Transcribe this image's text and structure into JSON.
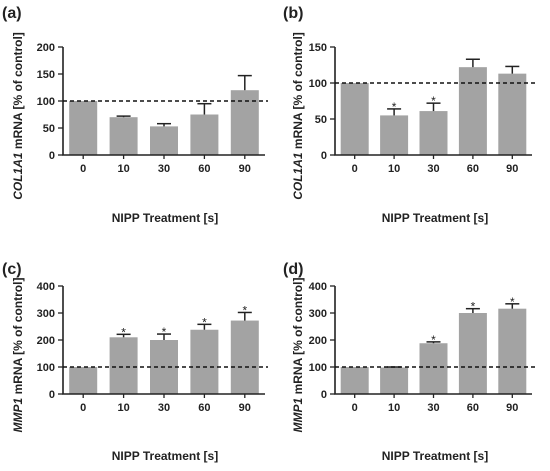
{
  "chart_data": [
    {
      "type": "bar",
      "panel_label": "(a)",
      "categories": [
        "0",
        "10",
        "30",
        "60",
        "90"
      ],
      "values": [
        100,
        70,
        53,
        75,
        120
      ],
      "errors": [
        0,
        2,
        5,
        20,
        27
      ],
      "significant": [
        false,
        false,
        false,
        false,
        false
      ],
      "ylim": [
        0,
        200
      ],
      "yticks": [
        0,
        50,
        100,
        150,
        200
      ],
      "reference_line": 100,
      "ylabel_gene": "COL1A1",
      "ylabel_rest": " mRNA [% of control]",
      "xlabel": "NIPP Treatment [s]",
      "bar_color": "#a3a3a3"
    },
    {
      "type": "bar",
      "panel_label": "(b)",
      "categories": [
        "0",
        "10",
        "30",
        "60",
        "90"
      ],
      "values": [
        100,
        55,
        61,
        122,
        113
      ],
      "errors": [
        0,
        9,
        11,
        11,
        10
      ],
      "significant": [
        false,
        true,
        true,
        false,
        false
      ],
      "ylim": [
        0,
        150
      ],
      "yticks": [
        0,
        50,
        100,
        150
      ],
      "reference_line": 100,
      "ylabel_gene": "COL1A1",
      "ylabel_rest": " mRNA [% of control]",
      "xlabel": "NIPP Treatment [s]",
      "bar_color": "#a3a3a3"
    },
    {
      "type": "bar",
      "panel_label": "(c)",
      "categories": [
        "0",
        "10",
        "30",
        "60",
        "90"
      ],
      "values": [
        100,
        210,
        200,
        238,
        272
      ],
      "errors": [
        0,
        11,
        22,
        20,
        30
      ],
      "significant": [
        false,
        true,
        true,
        true,
        true
      ],
      "ylim": [
        0,
        400
      ],
      "yticks": [
        0,
        100,
        200,
        300,
        400
      ],
      "reference_line": 100,
      "ylabel_gene": "MMP1",
      "ylabel_rest": " mRNA [% of control]",
      "xlabel": "NIPP Treatment [s]",
      "bar_color": "#a3a3a3"
    },
    {
      "type": "bar",
      "panel_label": "(d)",
      "categories": [
        "0",
        "10",
        "30",
        "60",
        "90"
      ],
      "values": [
        100,
        98,
        188,
        300,
        316
      ],
      "errors": [
        0,
        2,
        5,
        16,
        18
      ],
      "significant": [
        false,
        false,
        true,
        true,
        true
      ],
      "ylim": [
        0,
        400
      ],
      "yticks": [
        0,
        100,
        200,
        300,
        400
      ],
      "reference_line": 100,
      "ylabel_gene": "MMP1",
      "ylabel_rest": " mRNA [% of control]",
      "xlabel": "NIPP Treatment [s]",
      "bar_color": "#a3a3a3"
    }
  ],
  "significance_marker": "*"
}
